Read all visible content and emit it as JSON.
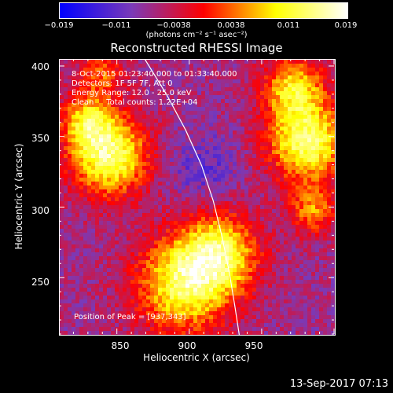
{
  "colorbar": {
    "ticks": [
      "−0.019",
      "−0.011",
      "−0.0038",
      "0.0038",
      "0.011",
      "0.019"
    ],
    "units": "(photons cm⁻² s⁻¹ asec⁻²)"
  },
  "title": "Reconstructed RHESSI Image",
  "info": {
    "time_range": "8-Oct-2015 01:23:40.000 to 01:33:40.000",
    "detectors": "Detectors: 1F 5F 7F, Att 0",
    "energy": "Energy Range: 12.0 - 25.0 keV",
    "clean": "Clean     Total counts: 1.22E+04"
  },
  "peak": "Position of Peak = [937,343]",
  "footer": "13-Sep-2017 07:13",
  "chart_data": {
    "type": "heatmap",
    "title": "Reconstructed RHESSI Image",
    "xlabel": "Heliocentric X (arcsec)",
    "ylabel": "Heliocentric Y (arcsec)",
    "xlim": [
      810,
      1000
    ],
    "ylim": [
      210,
      405
    ],
    "xticks": [
      "850",
      "900",
      "950"
    ],
    "yticks": [
      "250",
      "300",
      "350",
      "400"
    ],
    "colorbar_range": [
      -0.019,
      0.019
    ],
    "colormap": [
      "#0000ff",
      "#7a3ab8",
      "#ff0000",
      "#ffff00",
      "#ffffff"
    ],
    "limb_curve": [
      [
        869,
        405
      ],
      [
        884,
        380
      ],
      [
        897,
        355
      ],
      [
        908,
        330
      ],
      [
        916,
        305
      ],
      [
        922,
        280
      ],
      [
        927,
        255
      ],
      [
        931,
        230
      ],
      [
        934,
        210
      ]
    ]
  }
}
